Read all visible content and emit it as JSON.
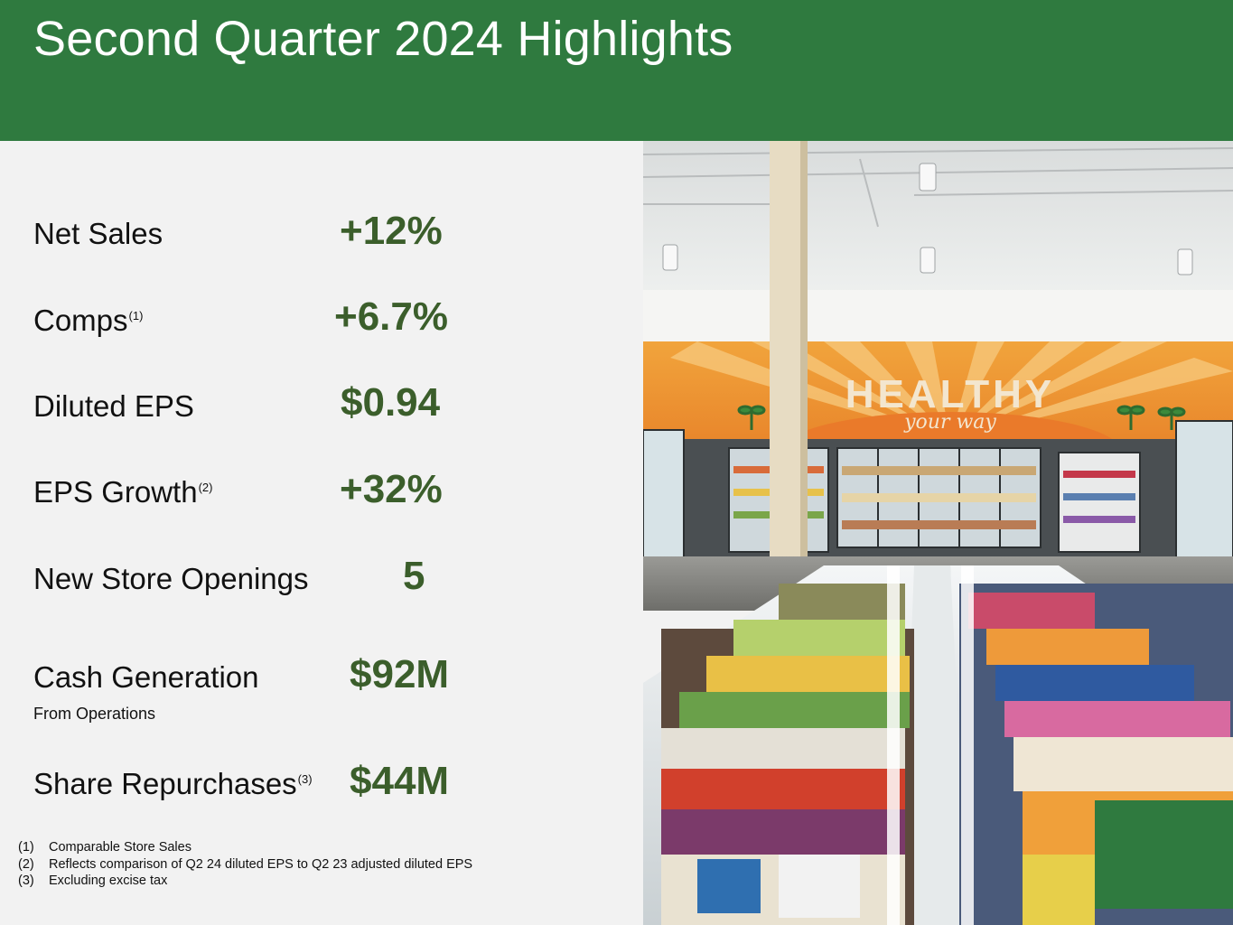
{
  "header": {
    "title": "Second Quarter 2024 Highlights"
  },
  "metrics": [
    {
      "label": "Net Sales",
      "note": "",
      "value": "+12%"
    },
    {
      "label": "Comps",
      "note": "(1)",
      "value": "+6.7%"
    },
    {
      "label": "Diluted EPS",
      "note": "",
      "value": "$0.94"
    },
    {
      "label": "EPS Growth",
      "note": "(2)",
      "value": "+32%"
    },
    {
      "label": "New Store Openings",
      "note": "",
      "value": "5"
    },
    {
      "label": "Cash Generation",
      "note": "",
      "sublabel": "From Operations",
      "value": "$92M"
    },
    {
      "label": "Share Repurchases",
      "note": "(3)",
      "value": "$44M"
    }
  ],
  "footnotes": [
    {
      "num": "(1)",
      "text": "Comparable Store Sales"
    },
    {
      "num": "(2)",
      "text": "Reflects comparison of Q2 24 diluted EPS to Q2 23 adjusted diluted EPS"
    },
    {
      "num": "(3)",
      "text": "Excluding excise tax"
    }
  ],
  "photo": {
    "sign_text": "HEALTHY",
    "sign_script": "your way"
  },
  "colors": {
    "header_bg": "#2f7a3f",
    "value_green": "#3b5e2b",
    "panel_bg": "#f2f2f2"
  }
}
